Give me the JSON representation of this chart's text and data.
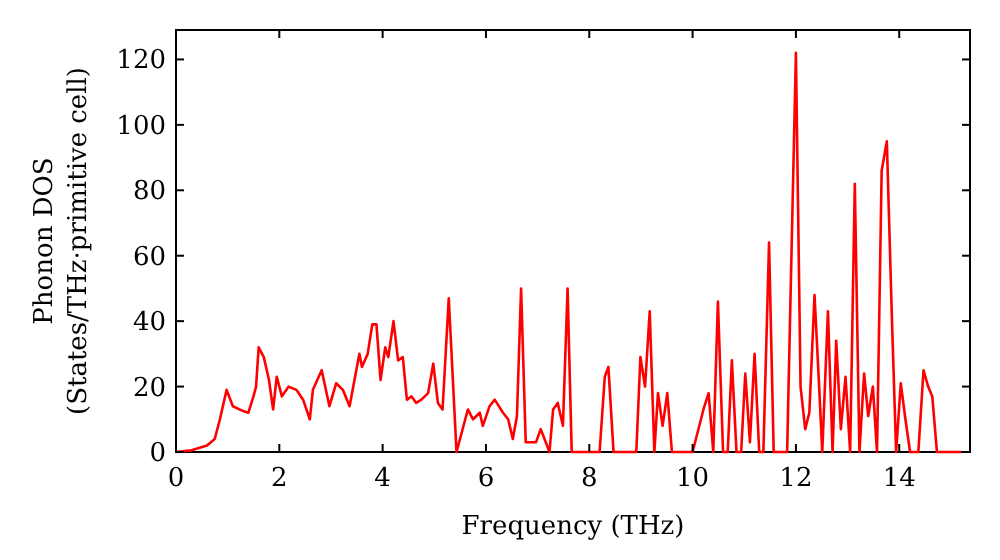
{
  "chart_data": {
    "type": "line",
    "xlabel": "Frequency (THz)",
    "ylabel": "Phonon DOS\n(States/THz·primitive cell)",
    "xlim": [
      0,
      15.37
    ],
    "ylim": [
      0,
      129
    ],
    "xticks": [
      0,
      2,
      4,
      6,
      8,
      10,
      12,
      14
    ],
    "yticks": [
      0,
      20,
      40,
      60,
      80,
      100,
      120
    ],
    "grid": false,
    "series": [
      {
        "color": "#ff0000",
        "x": [
          0,
          0.3,
          0.6,
          0.75,
          0.85,
          0.98,
          1.1,
          1.3,
          1.4,
          1.5,
          1.55,
          1.6,
          1.7,
          1.8,
          1.88,
          1.95,
          2.05,
          2.18,
          2.33,
          2.46,
          2.59,
          2.65,
          2.82,
          2.97,
          3.1,
          3.23,
          3.36,
          3.55,
          3.6,
          3.71,
          3.8,
          3.88,
          3.96,
          4.05,
          4.11,
          4.21,
          4.3,
          4.39,
          4.47,
          4.56,
          4.65,
          4.75,
          4.88,
          4.98,
          5.07,
          5.16,
          5.28,
          5.43,
          5.65,
          5.75,
          5.88,
          5.94,
          6.07,
          6.17,
          6.33,
          6.43,
          6.52,
          6.6,
          6.68,
          6.77,
          6.97,
          7.06,
          7.23,
          7.3,
          7.39,
          7.49,
          7.58,
          7.66,
          8.2,
          8.3,
          8.37,
          8.47,
          8.91,
          8.99,
          9.08,
          9.17,
          9.26,
          9.33,
          9.42,
          9.51,
          9.6,
          10.0,
          10.21,
          10.31,
          10.4,
          10.49,
          10.59,
          10.68,
          10.76,
          10.85,
          10.94,
          11.02,
          11.11,
          11.2,
          11.29,
          11.37,
          11.48,
          11.57,
          11.83,
          12.0,
          12.09,
          12.18,
          12.26,
          12.36,
          12.45,
          12.51,
          12.62,
          12.71,
          12.78,
          12.87,
          12.96,
          13.05,
          13.14,
          13.23,
          13.32,
          13.4,
          13.49,
          13.57,
          13.66,
          13.76,
          13.86,
          13.94,
          14.03,
          14.12,
          14.21,
          14.37,
          14.47,
          14.56,
          14.64,
          14.73,
          15.2
        ],
        "values": [
          0,
          0.5,
          2,
          4,
          10,
          19,
          14,
          12.5,
          12,
          17,
          20,
          32,
          29,
          22,
          13,
          23,
          17,
          20,
          19,
          16,
          10,
          19,
          25,
          14,
          21,
          19,
          14,
          30,
          26,
          30,
          39,
          39,
          22,
          32,
          29,
          40,
          28,
          29,
          16,
          17,
          15,
          16,
          18,
          27,
          15,
          13,
          47,
          0,
          13,
          10,
          12,
          8,
          14,
          16,
          12,
          10,
          4,
          11,
          50,
          3,
          3,
          7,
          0,
          13,
          15,
          8,
          50,
          0,
          0,
          23,
          26,
          0,
          0,
          29,
          20,
          43,
          0,
          18,
          8,
          18,
          0,
          0,
          13,
          18,
          0,
          46,
          0,
          0,
          28,
          0,
          0,
          24,
          3,
          30,
          0,
          0,
          64,
          0,
          0,
          122,
          20,
          7,
          12,
          48,
          20,
          0,
          43,
          0,
          34,
          7,
          23,
          0,
          82,
          0,
          24,
          11,
          20,
          0,
          86,
          95,
          40,
          0,
          21,
          10,
          0,
          0,
          25,
          20,
          17,
          0,
          0
        ]
      }
    ]
  }
}
